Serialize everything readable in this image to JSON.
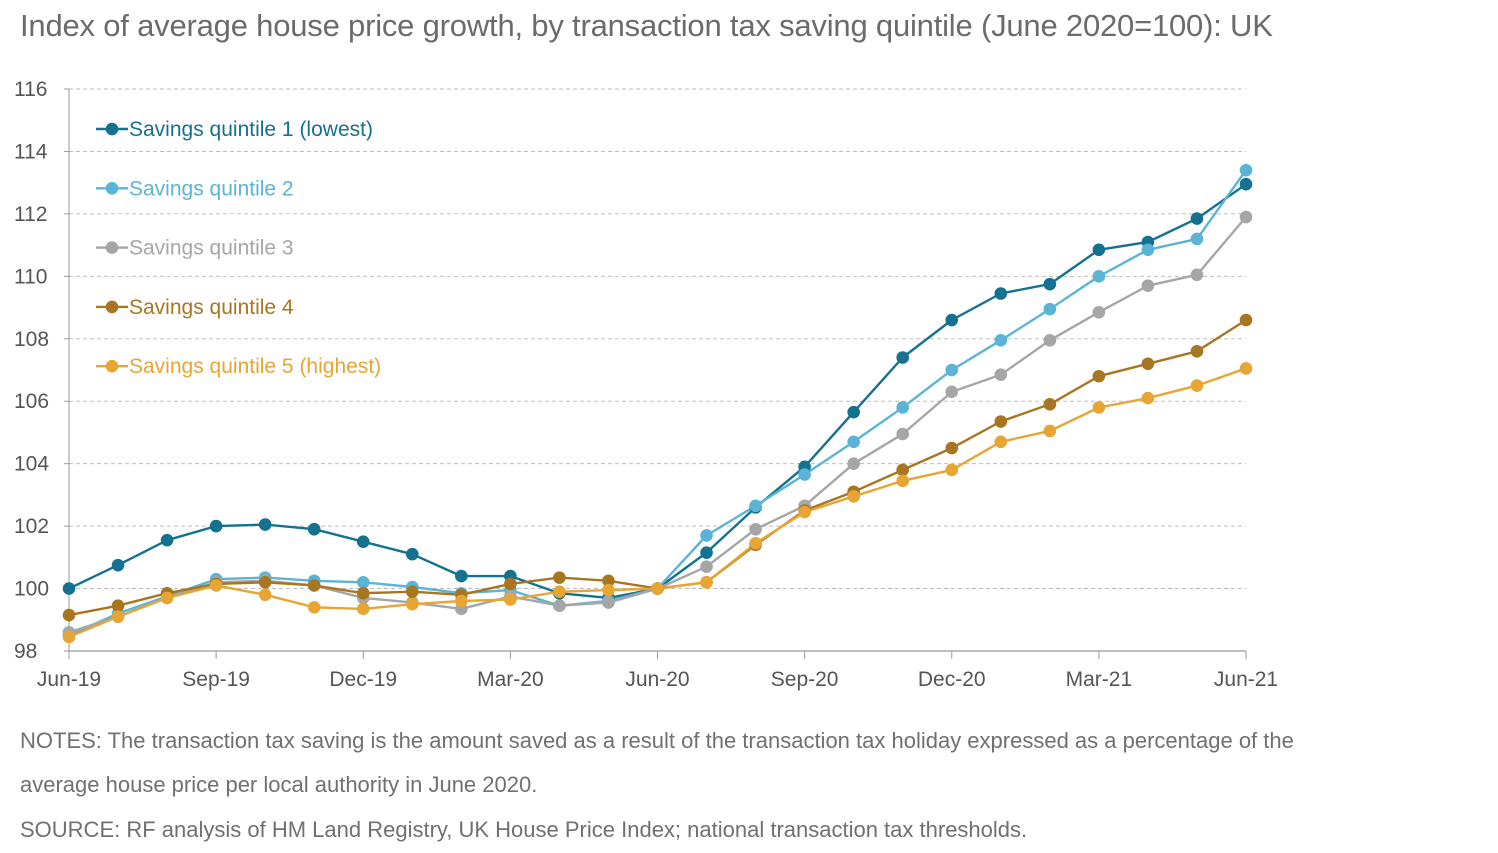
{
  "title": "Index of average house price growth, by transaction tax saving quintile (June 2020=100): UK",
  "notes_line1": "NOTES: The transaction tax saving is the amount saved as a result of the transaction tax holiday expressed as a percentage of the",
  "notes_line2": "average house price per local authority in June 2020.",
  "source": "SOURCE: RF analysis of HM Land Registry, UK House Price Index; national transaction tax thresholds.",
  "chart_data": {
    "type": "line",
    "title": "Index of average house price growth, by transaction tax saving quintile (June 2020=100): UK",
    "xlabel": "",
    "ylabel": "",
    "ylim": [
      98,
      116
    ],
    "yticks": [
      98,
      100,
      102,
      104,
      106,
      108,
      110,
      112,
      114,
      116
    ],
    "x": [
      "Jun-19",
      "Jul-19",
      "Aug-19",
      "Sep-19",
      "Oct-19",
      "Nov-19",
      "Dec-19",
      "Jan-20",
      "Feb-20",
      "Mar-20",
      "Apr-20",
      "May-20",
      "Jun-20",
      "Jul-20",
      "Aug-20",
      "Sep-20",
      "Oct-20",
      "Nov-20",
      "Dec-20",
      "Jan-21",
      "Feb-21",
      "Mar-21",
      "Apr-21",
      "May-21",
      "Jun-21"
    ],
    "xtick_labels": [
      "Jun-19",
      "Sep-19",
      "Dec-19",
      "Mar-20",
      "Jun-20",
      "Sep-20",
      "Dec-20",
      "Mar-21",
      "Jun-21"
    ],
    "grid": "horizontal dashed",
    "legend_position": "top-left",
    "series": [
      {
        "name": "Savings quintile 1 (lowest)",
        "color": "#14718f",
        "values": [
          100.0,
          100.75,
          101.55,
          102.0,
          102.05,
          101.9,
          101.5,
          101.1,
          100.4,
          100.4,
          99.85,
          99.7,
          100.0,
          101.15,
          102.6,
          103.9,
          105.65,
          107.4,
          108.6,
          109.45,
          109.75,
          110.85,
          111.1,
          111.85,
          112.95
        ]
      },
      {
        "name": "Savings quintile 2",
        "color": "#5bb4d6",
        "values": [
          98.5,
          99.2,
          99.75,
          100.3,
          100.35,
          100.25,
          100.2,
          100.05,
          99.85,
          99.95,
          99.45,
          99.6,
          100.0,
          101.7,
          102.65,
          103.65,
          104.7,
          105.8,
          107.0,
          107.95,
          108.95,
          110.0,
          110.85,
          111.2,
          113.4
        ]
      },
      {
        "name": "Savings quintile 3",
        "color": "#a6a6a6",
        "values": [
          98.6,
          99.1,
          99.7,
          100.2,
          100.25,
          100.1,
          99.7,
          99.55,
          99.35,
          99.75,
          99.45,
          99.55,
          100.0,
          100.7,
          101.9,
          102.65,
          104.0,
          104.95,
          106.3,
          106.85,
          107.95,
          108.85,
          109.7,
          110.05,
          111.9
        ]
      },
      {
        "name": "Savings quintile 4",
        "color": "#a87520",
        "values": [
          99.15,
          99.45,
          99.85,
          100.15,
          100.2,
          100.1,
          99.85,
          99.9,
          99.8,
          100.15,
          100.35,
          100.25,
          100.0,
          100.2,
          101.4,
          102.5,
          103.1,
          103.8,
          104.5,
          105.35,
          105.9,
          106.8,
          107.2,
          107.6,
          108.6
        ]
      },
      {
        "name": "Savings quintile 5 (highest)",
        "color": "#e7a534",
        "values": [
          98.45,
          99.1,
          99.7,
          100.1,
          99.8,
          99.4,
          99.35,
          99.5,
          99.6,
          99.65,
          99.9,
          99.95,
          100.0,
          100.2,
          101.45,
          102.45,
          102.95,
          103.45,
          103.8,
          104.7,
          105.05,
          105.8,
          106.1,
          106.5,
          107.05
        ]
      }
    ]
  }
}
